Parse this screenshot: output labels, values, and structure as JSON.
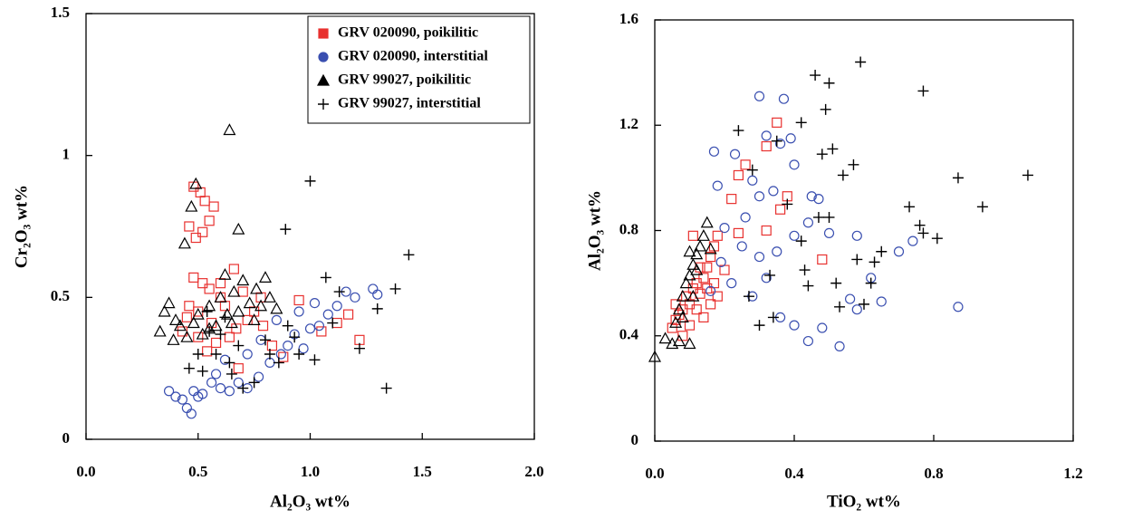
{
  "chart_data": [
    {
      "type": "scatter",
      "x_label": "Al₂O₃ wt%",
      "y_label": "Cr₂O₃ wt%",
      "xlim": [
        0,
        2
      ],
      "ylim": [
        0,
        1.5
      ],
      "xticks": [
        {
          "value": 0,
          "label": "0.0"
        },
        0.5,
        {
          "value": 1,
          "label": "1.0"
        },
        1.5,
        {
          "value": 2,
          "label": "2.0"
        }
      ],
      "yticks": [
        0,
        0.5,
        1,
        1.5
      ],
      "legend": "upper right",
      "series": [
        {
          "name": "GRV 020090, poikilitic",
          "color": "#e8312f",
          "marker": "square",
          "x": [
            0.48,
            0.51,
            0.53,
            0.57,
            0.46,
            0.52,
            0.49,
            0.55,
            0.48,
            0.52,
            0.55,
            0.6,
            0.66,
            0.7,
            0.45,
            0.5,
            0.56,
            0.62,
            0.67,
            0.72,
            0.43,
            0.5,
            0.58,
            0.64,
            0.75,
            0.79,
            0.83,
            0.88,
            0.95,
            1.05,
            1.12,
            1.17,
            1.22,
            0.68,
            0.54,
            0.46,
            0.78,
            0.6
          ],
          "y": [
            0.89,
            0.87,
            0.84,
            0.82,
            0.75,
            0.73,
            0.71,
            0.77,
            0.57,
            0.55,
            0.53,
            0.5,
            0.6,
            0.52,
            0.43,
            0.45,
            0.41,
            0.47,
            0.39,
            0.42,
            0.38,
            0.36,
            0.34,
            0.36,
            0.45,
            0.4,
            0.33,
            0.29,
            0.49,
            0.38,
            0.41,
            0.44,
            0.35,
            0.25,
            0.31,
            0.47,
            0.5,
            0.55
          ]
        },
        {
          "name": "GRV 020090, interstitial",
          "color": "#3a4fb0",
          "marker": "circle",
          "x": [
            0.37,
            0.4,
            0.43,
            0.45,
            0.47,
            0.48,
            0.5,
            0.52,
            0.56,
            0.6,
            0.64,
            0.68,
            0.72,
            0.77,
            0.82,
            0.87,
            0.9,
            0.93,
            0.97,
            1.0,
            1.04,
            1.08,
            1.12,
            1.16,
            1.2,
            1.28,
            1.3,
            0.95,
            0.85,
            0.62,
            0.58,
            0.72,
            1.02,
            0.78
          ],
          "y": [
            0.17,
            0.15,
            0.14,
            0.11,
            0.09,
            0.17,
            0.15,
            0.16,
            0.2,
            0.18,
            0.17,
            0.2,
            0.18,
            0.22,
            0.27,
            0.3,
            0.33,
            0.37,
            0.32,
            0.39,
            0.4,
            0.44,
            0.47,
            0.52,
            0.5,
            0.53,
            0.51,
            0.45,
            0.42,
            0.28,
            0.23,
            0.3,
            0.48,
            0.35
          ]
        },
        {
          "name": "GRV 99027, poikilitic",
          "color": "#000000",
          "marker": "triangle",
          "x": [
            0.64,
            0.49,
            0.47,
            0.44,
            0.68,
            0.33,
            0.35,
            0.37,
            0.4,
            0.42,
            0.45,
            0.5,
            0.55,
            0.6,
            0.63,
            0.66,
            0.7,
            0.73,
            0.76,
            0.8,
            0.82,
            0.85,
            0.62,
            0.58,
            0.52,
            0.48,
            0.68,
            0.75,
            0.39,
            0.55,
            0.65,
            0.78
          ],
          "y": [
            1.09,
            0.9,
            0.82,
            0.69,
            0.74,
            0.38,
            0.45,
            0.48,
            0.42,
            0.4,
            0.36,
            0.44,
            0.47,
            0.5,
            0.44,
            0.52,
            0.56,
            0.48,
            0.53,
            0.57,
            0.5,
            0.46,
            0.58,
            0.4,
            0.37,
            0.41,
            0.45,
            0.42,
            0.35,
            0.39,
            0.41,
            0.47
          ]
        },
        {
          "name": "GRV 99027, interstitial",
          "color": "#000000",
          "marker": "plus",
          "x": [
            1.0,
            0.89,
            1.44,
            1.07,
            1.13,
            1.38,
            1.3,
            1.22,
            1.34,
            1.1,
            1.02,
            0.95,
            0.9,
            0.82,
            0.75,
            0.7,
            0.64,
            0.58,
            0.52,
            0.46,
            0.5,
            0.55,
            0.62,
            0.6,
            0.68,
            0.8,
            0.86,
            0.93,
            0.54,
            0.65
          ],
          "y": [
            0.91,
            0.74,
            0.65,
            0.57,
            0.52,
            0.53,
            0.46,
            0.32,
            0.18,
            0.41,
            0.28,
            0.3,
            0.4,
            0.3,
            0.2,
            0.18,
            0.27,
            0.3,
            0.24,
            0.25,
            0.3,
            0.38,
            0.43,
            0.37,
            0.33,
            0.35,
            0.27,
            0.36,
            0.45,
            0.23
          ]
        }
      ]
    },
    {
      "type": "scatter",
      "x_label": "TiO₂ wt%",
      "y_label": "Al₂O₃ wt%",
      "xlim": [
        0,
        1.2
      ],
      "ylim": [
        0,
        1.6
      ],
      "xticks": [
        {
          "value": 0,
          "label": "0.0"
        },
        0.4,
        0.8,
        1.2
      ],
      "yticks": [
        0,
        0.4,
        0.8,
        1.2,
        1.6
      ],
      "series": [
        {
          "color": "#e8312f",
          "marker": "square",
          "x": [
            0.35,
            0.32,
            0.26,
            0.24,
            0.38,
            0.32,
            0.22,
            0.36,
            0.24,
            0.48,
            0.05,
            0.06,
            0.07,
            0.08,
            0.09,
            0.1,
            0.11,
            0.12,
            0.13,
            0.14,
            0.15,
            0.16,
            0.17,
            0.18,
            0.12,
            0.14,
            0.16,
            0.18,
            0.1,
            0.08,
            0.13,
            0.15,
            0.2,
            0.11,
            0.06,
            0.17
          ],
          "y": [
            1.21,
            1.12,
            1.05,
            1.01,
            0.93,
            0.8,
            0.92,
            0.88,
            0.79,
            0.69,
            0.43,
            0.46,
            0.48,
            0.5,
            0.55,
            0.52,
            0.58,
            0.6,
            0.56,
            0.62,
            0.66,
            0.7,
            0.74,
            0.78,
            0.5,
            0.47,
            0.52,
            0.55,
            0.44,
            0.4,
            0.66,
            0.58,
            0.65,
            0.78,
            0.52,
            0.6
          ]
        },
        {
          "color": "#3a4fb0",
          "marker": "circle",
          "x": [
            0.3,
            0.37,
            0.32,
            0.36,
            0.39,
            0.23,
            0.17,
            0.28,
            0.3,
            0.34,
            0.4,
            0.45,
            0.47,
            0.18,
            0.2,
            0.25,
            0.3,
            0.35,
            0.4,
            0.44,
            0.5,
            0.58,
            0.62,
            0.65,
            0.7,
            0.74,
            0.87,
            0.58,
            0.56,
            0.48,
            0.53,
            0.44,
            0.4,
            0.36,
            0.28,
            0.22,
            0.16,
            0.19,
            0.26,
            0.32
          ],
          "y": [
            1.31,
            1.3,
            1.16,
            1.13,
            1.15,
            1.09,
            1.1,
            0.99,
            0.93,
            0.95,
            1.05,
            0.93,
            0.92,
            0.97,
            0.81,
            0.74,
            0.7,
            0.72,
            0.78,
            0.83,
            0.79,
            0.78,
            0.62,
            0.53,
            0.72,
            0.76,
            0.51,
            0.5,
            0.54,
            0.43,
            0.36,
            0.38,
            0.44,
            0.47,
            0.55,
            0.6,
            0.57,
            0.68,
            0.85,
            0.62
          ]
        },
        {
          "color": "#000000",
          "marker": "triangle",
          "x": [
            0.0,
            0.03,
            0.05,
            0.07,
            0.1,
            0.06,
            0.07,
            0.08,
            0.09,
            0.1,
            0.11,
            0.12,
            0.13,
            0.14,
            0.15,
            0.1,
            0.12,
            0.08,
            0.16,
            0.11
          ],
          "y": [
            0.32,
            0.39,
            0.37,
            0.38,
            0.37,
            0.45,
            0.5,
            0.55,
            0.6,
            0.63,
            0.67,
            0.71,
            0.74,
            0.78,
            0.83,
            0.72,
            0.65,
            0.47,
            0.73,
            0.55
          ]
        },
        {
          "color": "#000000",
          "marker": "plus",
          "x": [
            0.59,
            0.46,
            0.5,
            0.77,
            0.49,
            0.24,
            0.42,
            0.35,
            0.48,
            0.51,
            0.57,
            0.54,
            0.87,
            1.07,
            0.94,
            0.73,
            0.76,
            0.77,
            0.81,
            0.65,
            0.63,
            0.58,
            0.5,
            0.47,
            0.42,
            0.43,
            0.44,
            0.52,
            0.62,
            0.27,
            0.3,
            0.34,
            0.33,
            0.6,
            0.53,
            0.28,
            0.38
          ],
          "y": [
            1.44,
            1.39,
            1.36,
            1.33,
            1.26,
            1.18,
            1.21,
            1.14,
            1.09,
            1.11,
            1.05,
            1.01,
            1.0,
            1.01,
            0.89,
            0.89,
            0.82,
            0.79,
            0.77,
            0.72,
            0.68,
            0.69,
            0.85,
            0.85,
            0.76,
            0.65,
            0.59,
            0.6,
            0.6,
            0.55,
            0.44,
            0.47,
            0.63,
            0.52,
            0.51,
            1.03,
            0.9
          ]
        }
      ]
    }
  ]
}
